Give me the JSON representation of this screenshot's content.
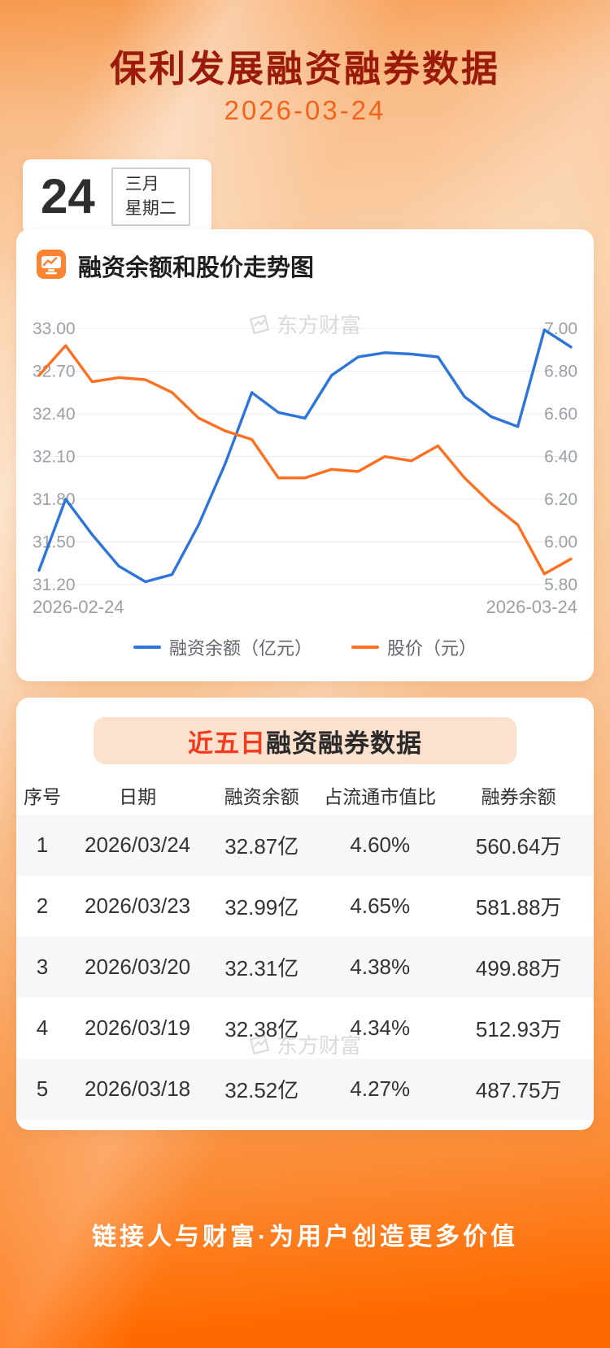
{
  "page": {
    "title": "保利发展融资融券数据",
    "date": "2026-03-24",
    "footer_slogan": "链接人与财富·为用户创造更多价值"
  },
  "calendar": {
    "day": "24",
    "month": "三月",
    "weekday": "星期二"
  },
  "watermark": {
    "text": "东方财富"
  },
  "chart_section": {
    "title": "融资余额和股价走势图"
  },
  "chart_data": {
    "type": "line",
    "title": "融资余额和股价走势图",
    "grid": true,
    "legend_position": "bottom",
    "x_axis": {
      "start_label": "2026-02-24",
      "end_label": "2026-03-24"
    },
    "left_axis": {
      "name": "融资余额（亿元）",
      "min": 31.2,
      "max": 33.0,
      "ticks": [
        "33.00",
        "32.70",
        "32.40",
        "32.10",
        "31.80",
        "31.50",
        "31.20"
      ]
    },
    "right_axis": {
      "name": "股价（元）",
      "min": 5.8,
      "max": 7.0,
      "ticks": [
        "7.00",
        "6.80",
        "6.60",
        "6.40",
        "6.20",
        "6.00",
        "5.80"
      ]
    },
    "series": [
      {
        "name": "融资余额（亿元）",
        "axis": "left",
        "color": "#2d75d8",
        "values": [
          31.3,
          31.8,
          31.55,
          31.33,
          31.22,
          31.27,
          31.62,
          32.05,
          32.55,
          32.41,
          32.37,
          32.67,
          32.8,
          32.83,
          32.82,
          32.8,
          32.52,
          32.38,
          32.31,
          32.99,
          32.87
        ]
      },
      {
        "name": "股价（元）",
        "axis": "right",
        "color": "#fd7021",
        "values": [
          6.78,
          6.92,
          6.75,
          6.77,
          6.76,
          6.7,
          6.58,
          6.52,
          6.48,
          6.3,
          6.3,
          6.34,
          6.33,
          6.4,
          6.38,
          6.45,
          6.3,
          6.18,
          6.08,
          5.85,
          5.92
        ]
      }
    ]
  },
  "table_section": {
    "title_highlight": "近五日",
    "title_rest": "融资融券数据",
    "columns": [
      "序号",
      "日期",
      "融资余额",
      "占流通市值比",
      "融券余额"
    ],
    "rows": [
      [
        "1",
        "2026/03/24",
        "32.87亿",
        "4.60%",
        "560.64万"
      ],
      [
        "2",
        "2026/03/23",
        "32.99亿",
        "4.65%",
        "581.88万"
      ],
      [
        "3",
        "2026/03/20",
        "32.31亿",
        "4.38%",
        "499.88万"
      ],
      [
        "4",
        "2026/03/19",
        "32.38亿",
        "4.34%",
        "512.93万"
      ],
      [
        "5",
        "2026/03/18",
        "32.52亿",
        "4.27%",
        "487.75万"
      ]
    ]
  },
  "colors": {
    "title": "#9b1b0b",
    "date": "#f2641c",
    "highlight_red": "#f5391c",
    "financing_line": "#2d75d8",
    "price_line": "#fd7021",
    "footer_bg": "#ff6a00"
  }
}
